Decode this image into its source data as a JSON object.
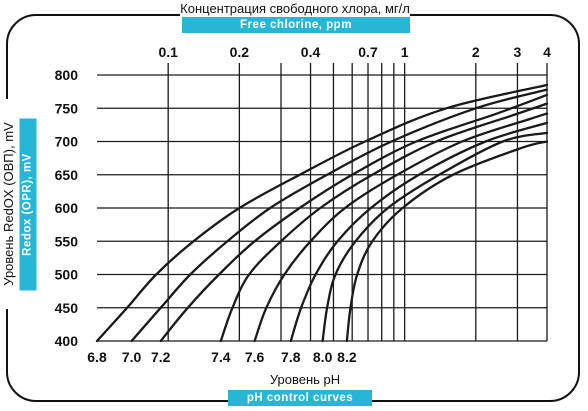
{
  "titles": {
    "top_ru": "Концентрация свободного хлора, мг/л",
    "top_en": "Free chlorine, ppm",
    "bottom_ru": "Уровень pH",
    "bottom_en": "pH control curves",
    "y_ru": "Уровень RedOX (ОВП), mV",
    "y_en": "Redox (OPR), mV"
  },
  "chart_data": {
    "type": "line",
    "x_top_label": "Free chlorine, ppm",
    "x_top_scale": "log",
    "x_top_range": [
      0.05,
      4
    ],
    "x_top_ticks": [
      0.1,
      0.2,
      0.3,
      0.4,
      0.5,
      0.6,
      0.7,
      0.8,
      0.9,
      1,
      2,
      3,
      4
    ],
    "x_top_tick_labels": [
      {
        "value": 0.1,
        "label": "0.1"
      },
      {
        "value": 0.2,
        "label": "0.2"
      },
      {
        "value": 0.4,
        "label": "0.4"
      },
      {
        "value": 0.7,
        "label": "0.7"
      },
      {
        "value": 1,
        "label": "1"
      },
      {
        "value": 2,
        "label": "2"
      },
      {
        "value": 3,
        "label": "3"
      },
      {
        "value": 4,
        "label": "4"
      }
    ],
    "ylabel": "Redox (OPR), mV",
    "ylim": [
      400,
      800
    ],
    "y_ticks": [
      400,
      450,
      500,
      550,
      600,
      650,
      700,
      750,
      800
    ],
    "bottom_label": "pH control curves",
    "series": [
      {
        "name": "6.8",
        "points": [
          [
            0.05,
            400
          ],
          [
            0.067,
            450
          ],
          [
            0.089,
            500
          ],
          [
            0.128,
            550
          ],
          [
            0.2,
            600
          ],
          [
            0.36,
            650
          ],
          [
            0.68,
            700
          ],
          [
            1.5,
            750
          ],
          [
            4,
            785
          ]
        ]
      },
      {
        "name": "7.0",
        "points": [
          [
            0.07,
            400
          ],
          [
            0.093,
            450
          ],
          [
            0.124,
            500
          ],
          [
            0.178,
            550
          ],
          [
            0.27,
            600
          ],
          [
            0.47,
            650
          ],
          [
            0.88,
            700
          ],
          [
            2.0,
            750
          ],
          [
            4,
            778
          ]
        ]
      },
      {
        "name": "7.2",
        "points": [
          [
            0.093,
            400
          ],
          [
            0.121,
            450
          ],
          [
            0.164,
            500
          ],
          [
            0.232,
            550
          ],
          [
            0.36,
            600
          ],
          [
            0.6,
            650
          ],
          [
            1.12,
            700
          ],
          [
            2.5,
            743
          ],
          [
            4,
            770
          ]
        ]
      },
      {
        "name": "7.4",
        "points": [
          [
            0.167,
            400
          ],
          [
            0.187,
            450
          ],
          [
            0.22,
            500
          ],
          [
            0.3,
            550
          ],
          [
            0.44,
            600
          ],
          [
            0.73,
            650
          ],
          [
            1.36,
            700
          ],
          [
            2.9,
            740
          ],
          [
            4,
            757
          ]
        ]
      },
      {
        "name": "7.6",
        "points": [
          [
            0.232,
            400
          ],
          [
            0.26,
            450
          ],
          [
            0.31,
            500
          ],
          [
            0.4,
            550
          ],
          [
            0.56,
            600
          ],
          [
            0.93,
            650
          ],
          [
            1.75,
            700
          ],
          [
            3.4,
            734
          ],
          [
            4,
            742
          ]
        ]
      },
      {
        "name": "7.8",
        "points": [
          [
            0.33,
            400
          ],
          [
            0.365,
            450
          ],
          [
            0.42,
            500
          ],
          [
            0.52,
            550
          ],
          [
            0.72,
            600
          ],
          [
            1.15,
            650
          ],
          [
            2.2,
            700
          ],
          [
            4,
            728
          ]
        ]
      },
      {
        "name": "8.0",
        "points": [
          [
            0.45,
            400
          ],
          [
            0.47,
            450
          ],
          [
            0.51,
            500
          ],
          [
            0.62,
            550
          ],
          [
            0.85,
            600
          ],
          [
            1.4,
            650
          ],
          [
            2.6,
            700
          ],
          [
            4,
            713
          ]
        ]
      },
      {
        "name": "8.2",
        "points": [
          [
            0.57,
            400
          ],
          [
            0.59,
            450
          ],
          [
            0.63,
            500
          ],
          [
            0.73,
            550
          ],
          [
            0.98,
            600
          ],
          [
            1.6,
            650
          ],
          [
            3.1,
            690
          ],
          [
            4,
            700
          ]
        ]
      }
    ],
    "curve_labels": [
      "6.8",
      "7.0",
      "7.2",
      "7.4",
      "7.6",
      "7.8",
      "8.0",
      "8.2"
    ],
    "grid": true,
    "colors": {
      "line": "#1a1a1a",
      "grid": "#1a1a1a",
      "accent": "#27b6d6"
    }
  }
}
